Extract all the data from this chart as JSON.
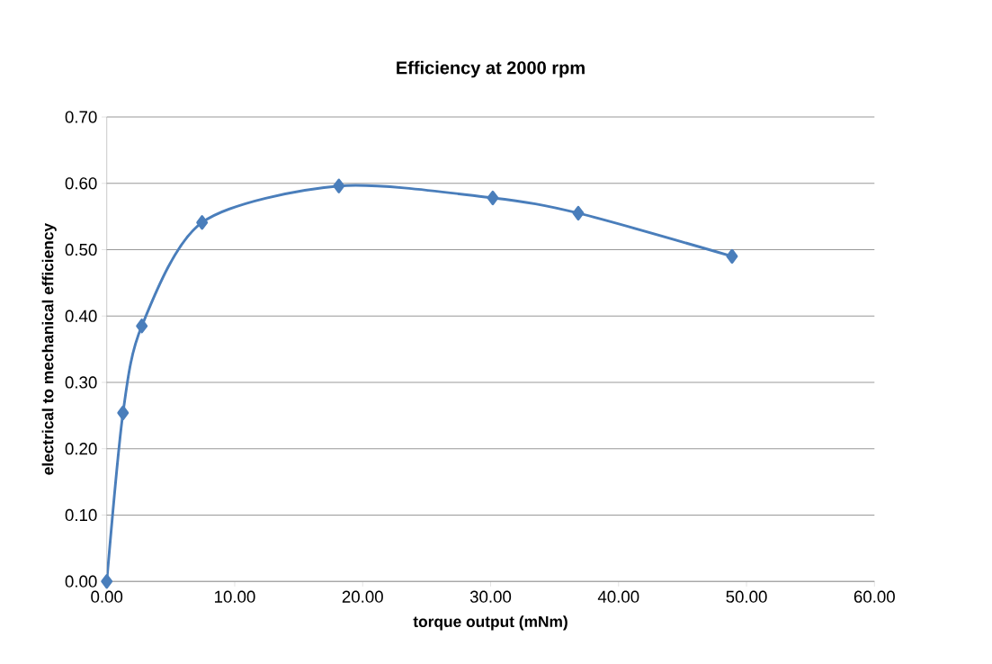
{
  "chart_data": {
    "type": "line",
    "title": "Efficiency at 2000 rpm",
    "xlabel": "torque output (mNm)",
    "ylabel": "electrical to mechanical efficiency",
    "x": [
      0,
      1.27,
      2.74,
      7.45,
      18.14,
      30.17,
      36.85,
      48.87
    ],
    "series": [
      {
        "color": "#4a7ebb",
        "values": [
          0,
          0.254,
          0.385,
          0.541,
          0.596,
          0.578,
          0.555,
          0.49
        ]
      }
    ],
    "xlim": [
      0,
      60
    ],
    "ylim": [
      0,
      0.7
    ],
    "xticks": [
      {
        "value": 0,
        "label": "0.00"
      },
      {
        "value": 10,
        "label": "10.00"
      },
      {
        "value": 20,
        "label": "20.00"
      },
      {
        "value": 30,
        "label": "30.00"
      },
      {
        "value": 40,
        "label": "40.00"
      },
      {
        "value": 50,
        "label": "50.00"
      },
      {
        "value": 60,
        "label": "60.00"
      }
    ],
    "yticks": [
      {
        "value": 0,
        "label": "0.00"
      },
      {
        "value": 0.1,
        "label": "0.10"
      },
      {
        "value": 0.2,
        "label": "0.20"
      },
      {
        "value": 0.3,
        "label": "0.30"
      },
      {
        "value": 0.4,
        "label": "0.40"
      },
      {
        "value": 0.5,
        "label": "0.50"
      },
      {
        "value": 0.6,
        "label": "0.60"
      },
      {
        "value": 0.7,
        "label": "0.70"
      }
    ],
    "grid": "y",
    "marker": "diamond",
    "line_style": "solid"
  }
}
